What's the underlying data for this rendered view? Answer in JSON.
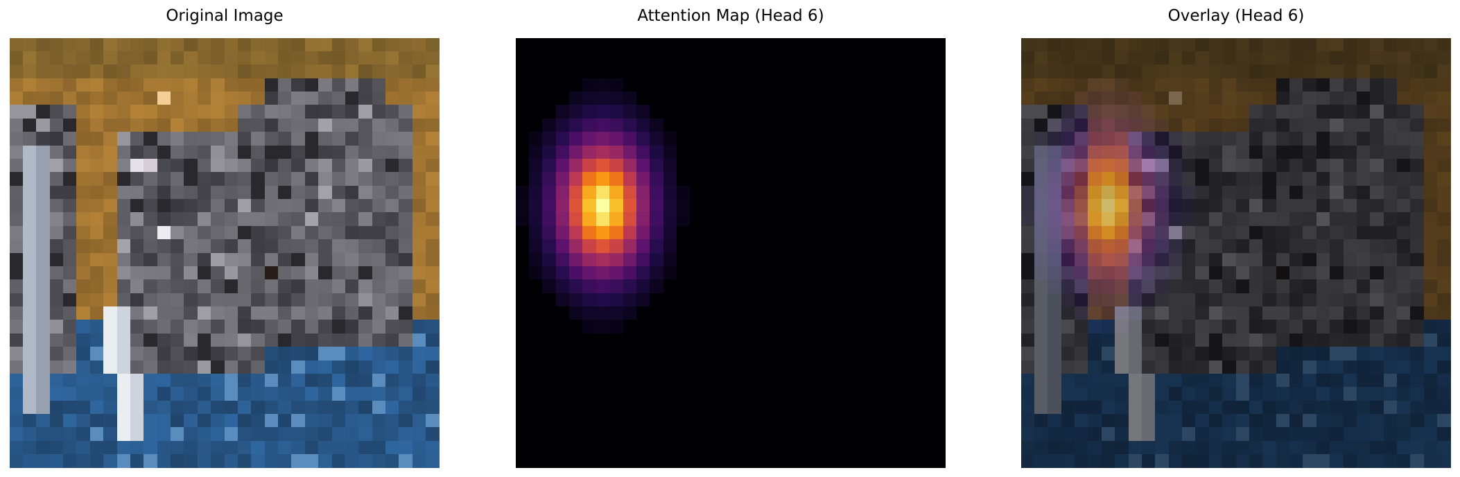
{
  "panels": {
    "original": {
      "title": "Original Image"
    },
    "attention": {
      "title": "Attention Map (Head 6)"
    },
    "overlay": {
      "title": "Overlay (Head 6)"
    }
  },
  "colors": {
    "background": "#ffffff",
    "sky_orange": "#a87a34",
    "cat_gray": "#6e6e72",
    "water_blue": "#2c5f94",
    "attention_peak": "#fcffa4",
    "attention_mid": "#f37819",
    "attention_low": "#56106e",
    "attention_zero": "#000004"
  },
  "image": {
    "grid": 32,
    "description_icon": "cat-photo"
  },
  "attention_map": {
    "colormap": "inferno",
    "grid_cols": 32,
    "grid_rows": 32,
    "peak_cell": [
      6,
      12
    ],
    "sigma_cols": 2.4,
    "sigma_rows": 3.6
  }
}
